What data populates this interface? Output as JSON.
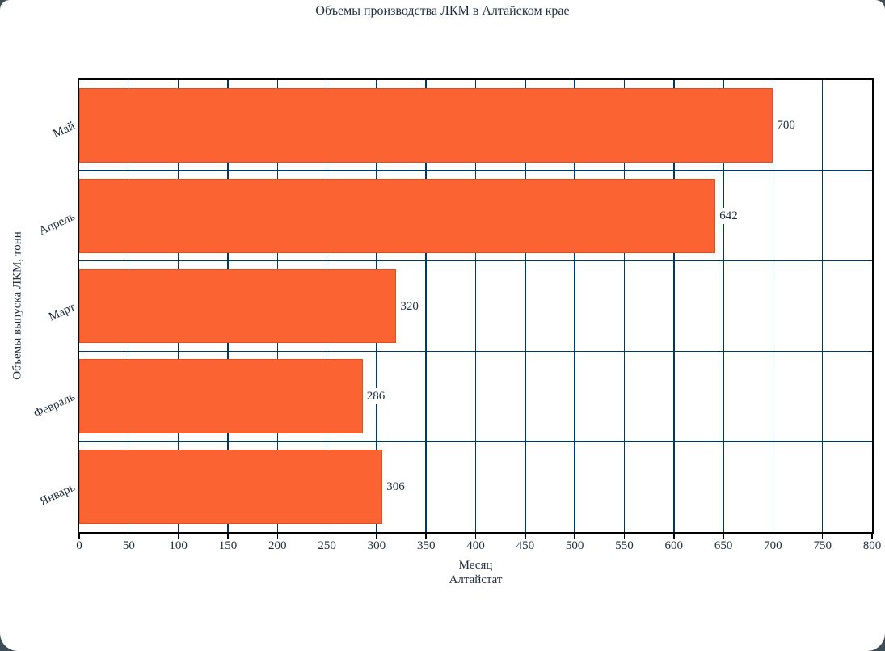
{
  "window": {
    "background_color": "#3e4e59",
    "page_color": "#ffffff"
  },
  "chart_data": {
    "type": "bar",
    "orientation": "horizontal",
    "title": "Объемы производства ЛКМ в Алтайском крае",
    "categories": [
      "Май",
      "Апрель",
      "Март",
      "Февраль",
      "Январь"
    ],
    "values": [
      700,
      642,
      320,
      286,
      306
    ],
    "value_labels": [
      "700",
      "642",
      "320",
      "286",
      "306"
    ],
    "xlabel": "Месяц",
    "source_label": "Алтайстат",
    "ylabel": "Объемы выпуска ЛКМ, тонн",
    "xlim": [
      0,
      800
    ],
    "xticks": [
      0,
      50,
      100,
      150,
      200,
      250,
      300,
      350,
      400,
      450,
      500,
      550,
      600,
      650,
      700,
      750,
      800
    ],
    "grid": true,
    "legend": "none",
    "colors": {
      "bar": "#fb6432",
      "bar_border": "#dd4f1e",
      "grid": "#003a63",
      "axis": "#000000",
      "text": "#1d2d3d",
      "label_background": "#ffffff"
    }
  }
}
